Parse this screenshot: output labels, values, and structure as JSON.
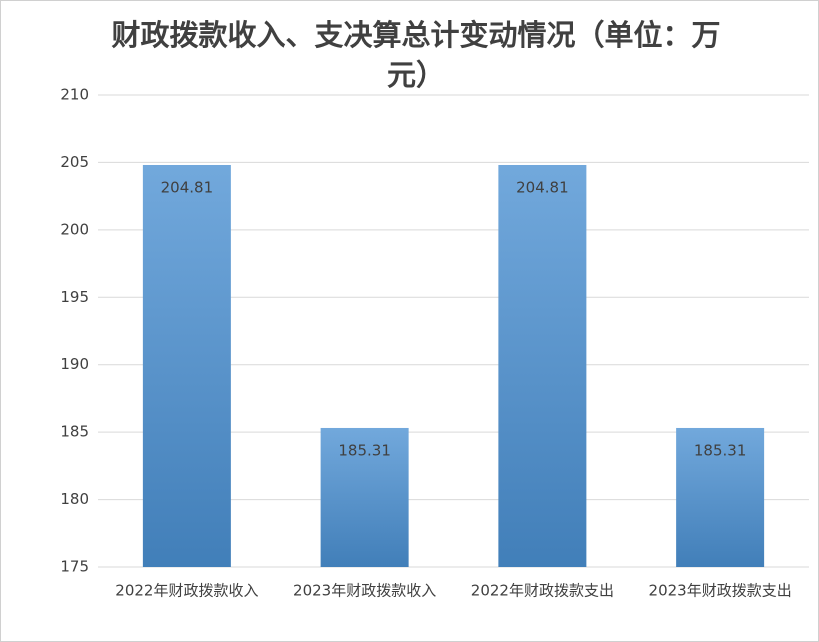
{
  "chart_data": {
    "type": "bar",
    "title": "财政拨款收入、支决算总计变动情况（单位：万元）",
    "categories": [
      "2022年财政拨款收入",
      "2023年财政拨款收入",
      "2022年财政拨款支出",
      "2023年财政拨款支出"
    ],
    "values": [
      204.81,
      185.31,
      204.81,
      185.31
    ],
    "color": "#4a90d2",
    "ylim": [
      175,
      210
    ],
    "yticks": [
      175,
      180,
      185,
      190,
      195,
      200,
      205,
      210
    ],
    "grid": true
  }
}
